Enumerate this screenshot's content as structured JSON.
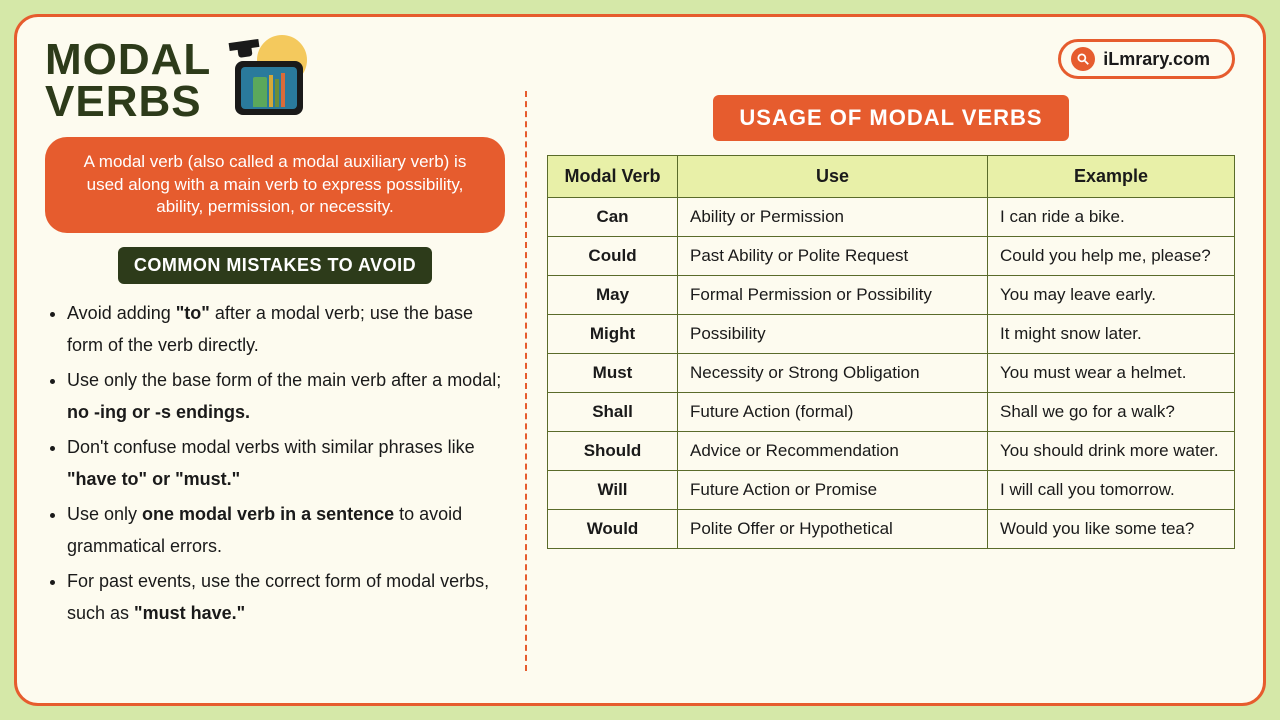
{
  "brand": {
    "name": "iLmrary.com"
  },
  "title_line1": "MODAL",
  "title_line2": "VERBS",
  "definition": "A modal verb (also called a modal auxiliary verb) is used along with a main verb to express possibility, ability, permission, or necessity.",
  "mistakes_header": "COMMON MISTAKES TO AVOID",
  "mistakes": [
    {
      "pre": "Avoid adding ",
      "bold": "\"to\"",
      "post": " after a modal verb; use the base form of the verb directly."
    },
    {
      "pre": "Use only the base form of the main verb after a modal; ",
      "bold": "no -ing or -s endings.",
      "post": ""
    },
    {
      "pre": "Don't confuse modal verbs with similar phrases like ",
      "bold": "\"have to\" or \"must.\"",
      "post": ""
    },
    {
      "pre": "Use only ",
      "bold": "one modal verb in a sentence",
      "post": " to avoid grammatical errors."
    },
    {
      "pre": "For past events, use the correct form of modal verbs, such as ",
      "bold": "\"must have.\"",
      "post": ""
    }
  ],
  "usage_header": "USAGE OF MODAL VERBS",
  "table": {
    "columns": [
      "Modal Verb",
      "Use",
      "Example"
    ],
    "rows": [
      {
        "verb": "Can",
        "use": "Ability or Permission",
        "example": "I can ride a bike."
      },
      {
        "verb": "Could",
        "use": "Past Ability or Polite Request",
        "example": "Could you help me, please?"
      },
      {
        "verb": "May",
        "use": "Formal Permission or Possibility",
        "example": "You may leave early."
      },
      {
        "verb": "Might",
        "use": "Possibility",
        "example": "It might snow later."
      },
      {
        "verb": "Must",
        "use": "Necessity or Strong Obligation",
        "example": "You must wear a helmet."
      },
      {
        "verb": "Shall",
        "use": "Future Action (formal)",
        "example": "Shall we go for a walk?"
      },
      {
        "verb": "Should",
        "use": "Advice or Recommendation",
        "example": "You should drink more water."
      },
      {
        "verb": "Will",
        "use": "Future Action or Promise",
        "example": "I will call you tomorrow."
      },
      {
        "verb": "Would",
        "use": "Polite Offer or Hypothetical",
        "example": "Would you like some tea?"
      }
    ]
  },
  "colors": {
    "page_bg": "#d5e8a8",
    "card_bg": "#fdfbef",
    "accent": "#e65c2e",
    "dark_green": "#2d3b1a",
    "table_header_bg": "#e8f0a8",
    "table_border": "#5a6b2a"
  }
}
